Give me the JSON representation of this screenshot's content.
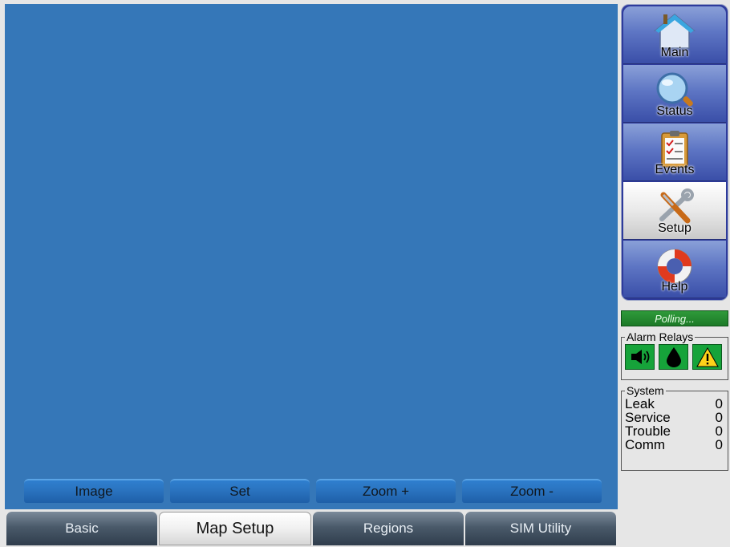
{
  "map_toolbar": [
    {
      "id": "image",
      "label": "Image"
    },
    {
      "id": "set",
      "label": "Set"
    },
    {
      "id": "zoom-in",
      "label": "Zoom +"
    },
    {
      "id": "zoom-out",
      "label": "Zoom -"
    }
  ],
  "tabs": [
    {
      "id": "basic",
      "label": "Basic",
      "active": false
    },
    {
      "id": "map-setup",
      "label": "Map Setup",
      "active": true
    },
    {
      "id": "regions",
      "label": "Regions",
      "active": false
    },
    {
      "id": "sim-utility",
      "label": "SIM Utility",
      "active": false
    }
  ],
  "nav": [
    {
      "id": "main",
      "label": "Main",
      "icon": "house-icon",
      "active": false
    },
    {
      "id": "status",
      "label": "Status",
      "icon": "magnifier-icon",
      "active": false
    },
    {
      "id": "events",
      "label": "Events",
      "icon": "clipboard-icon",
      "active": false
    },
    {
      "id": "setup",
      "label": "Setup",
      "icon": "tools-icon",
      "active": true
    },
    {
      "id": "help",
      "label": "Help",
      "icon": "lifebuoy-icon",
      "active": false
    }
  ],
  "polling": {
    "text": "Polling..."
  },
  "alarm_relays": {
    "title": "Alarm Relays",
    "relays": [
      {
        "id": "horn",
        "icon": "speaker-icon"
      },
      {
        "id": "leak",
        "icon": "droplet-icon"
      },
      {
        "id": "warning",
        "icon": "warning-icon"
      }
    ]
  },
  "system": {
    "title": "System",
    "rows": [
      {
        "label": "Leak",
        "value": "0"
      },
      {
        "label": "Service",
        "value": "0"
      },
      {
        "label": "Trouble",
        "value": "0"
      },
      {
        "label": "Comm",
        "value": "0"
      }
    ]
  },
  "colors": {
    "map_bg": "#3577b8",
    "nav_bg": "#2e3b9c",
    "relay_green": "#16a33a",
    "polling_green": "#1d7a28"
  }
}
